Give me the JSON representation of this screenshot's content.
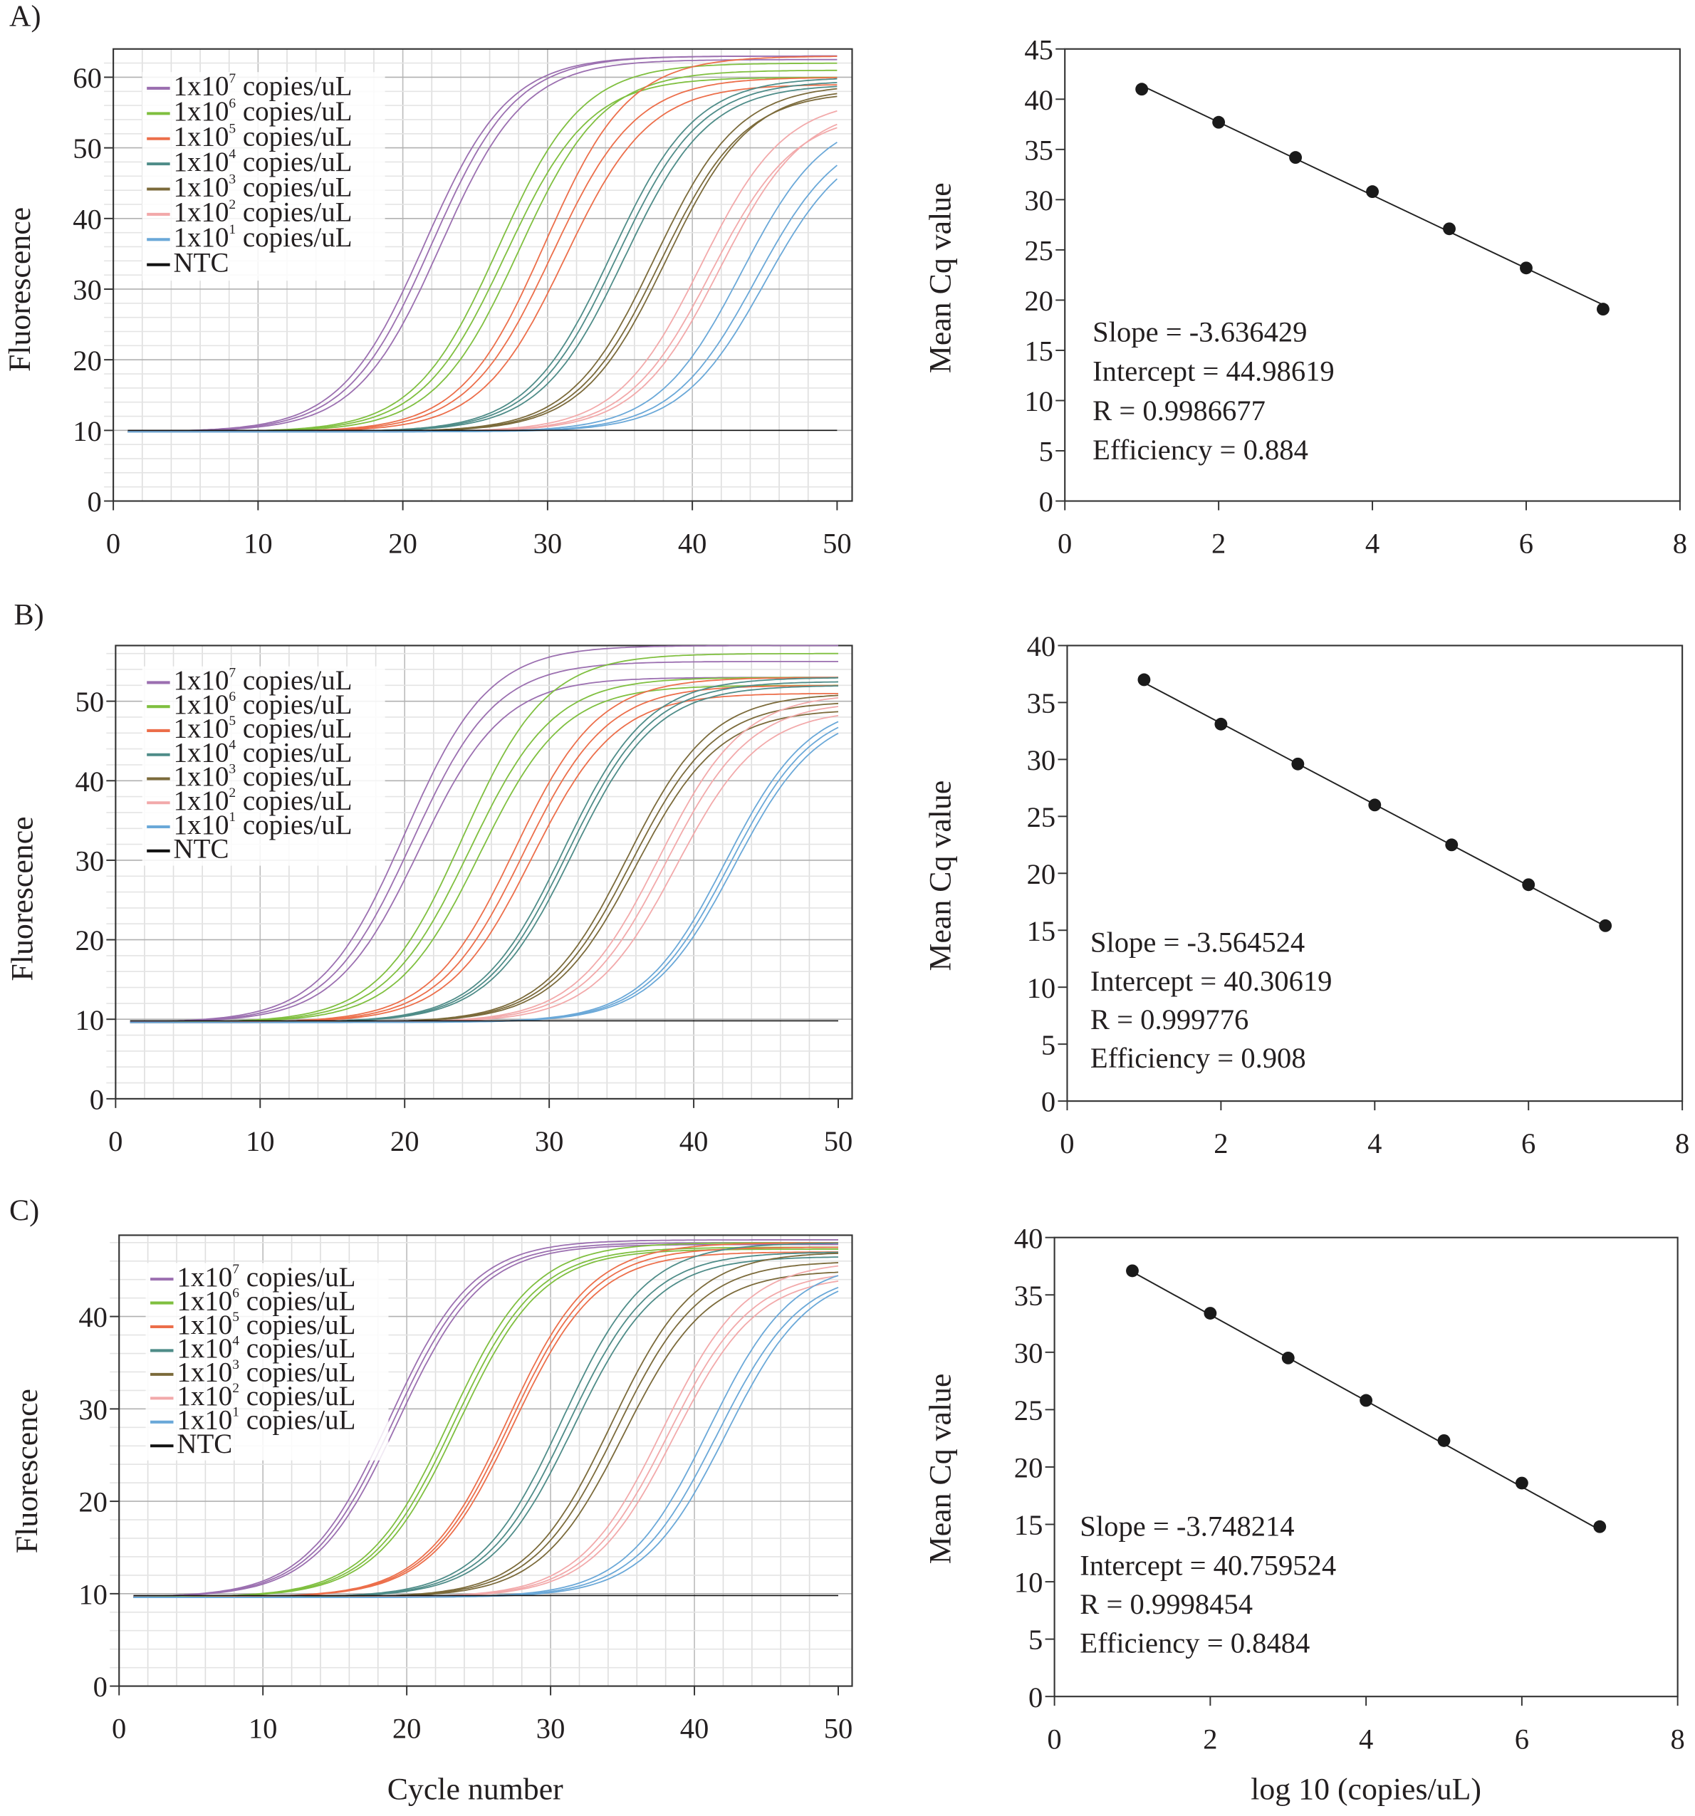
{
  "chart_data": [
    {
      "panel": "A)",
      "type": "line",
      "xlabel": "",
      "ylabel": "Fluorescence",
      "xlim": [
        0,
        50
      ],
      "ylim": [
        0,
        64
      ],
      "xticks": [
        0,
        10,
        20,
        30,
        40,
        50
      ],
      "yticks": [
        0,
        10,
        20,
        30,
        40,
        50,
        60
      ],
      "grid": true,
      "legend_position": "top-left",
      "baseline": 9.8,
      "ntc_level": 10,
      "series": [
        {
          "base": "1x10",
          "exp": "7",
          "unit": "copies/uL",
          "color": "#9b6fb0",
          "plateau": [
            63,
            63,
            62.5
          ],
          "midpoint": [
            21.5,
            22.0,
            22.6
          ]
        },
        {
          "base": "1x10",
          "exp": "6",
          "unit": "copies/uL",
          "color": "#7fbf3f",
          "plateau": [
            62,
            60,
            61
          ],
          "midpoint": [
            26.6,
            27.1,
            28.0
          ]
        },
        {
          "base": "1x10",
          "exp": "5",
          "unit": "copies/uL",
          "color": "#ec6e4a",
          "plateau": [
            63,
            60,
            59
          ],
          "midpoint": [
            29.8,
            30.3,
            31.2
          ]
        },
        {
          "base": "1x10",
          "exp": "4",
          "unit": "copies/uL",
          "color": "#4e8c88",
          "plateau": [
            60,
            59.5,
            59
          ],
          "midpoint": [
            34.4,
            34.8,
            35.3
          ]
        },
        {
          "base": "1x10",
          "exp": "3",
          "unit": "copies/uL",
          "color": "#7b6a3a",
          "plateau": [
            59,
            58,
            58.5
          ],
          "midpoint": [
            37.4,
            37.8,
            38.2
          ]
        },
        {
          "base": "1x10",
          "exp": "2",
          "unit": "copies/uL",
          "color": "#f2a9aa",
          "plateau": [
            57,
            55,
            56
          ],
          "midpoint": [
            40.6,
            41.3,
            41.9
          ]
        },
        {
          "base": "1x10",
          "exp": "1",
          "unit": "copies/uL",
          "color": "#6aa8d8",
          "plateau": [
            55,
            53,
            52
          ],
          "midpoint": [
            43.4,
            44.4,
            45.0
          ]
        },
        {
          "base": "NTC",
          "exp": "",
          "unit": "",
          "color": "#111111",
          "plateau": null,
          "midpoint": null
        }
      ]
    },
    {
      "panel": "",
      "type": "scatter",
      "xlabel": "",
      "ylabel": "Mean Cq value",
      "xlim": [
        0,
        8
      ],
      "ylim": [
        0,
        45
      ],
      "xticks": [
        0,
        2,
        4,
        6,
        8
      ],
      "yticks": [
        0,
        5,
        10,
        15,
        20,
        25,
        30,
        35,
        40,
        45
      ],
      "x": [
        1,
        2,
        3,
        4,
        5,
        6,
        7
      ],
      "y": [
        41.0,
        37.7,
        34.2,
        30.8,
        27.1,
        23.2,
        19.1
      ],
      "fit": {
        "slope": -3.636429,
        "intercept": 44.98619
      },
      "annotations": [
        "Slope = -3.636429",
        "Intercept = 44.98619",
        "R = 0.9986677",
        "Efficiency = 0.884"
      ]
    },
    {
      "panel": "B)",
      "type": "line",
      "xlabel": "",
      "ylabel": "Fluorescence",
      "xlim": [
        0,
        50
      ],
      "ylim": [
        0,
        57
      ],
      "xticks": [
        0,
        10,
        20,
        30,
        40,
        50
      ],
      "yticks": [
        0,
        10,
        20,
        30,
        40,
        50
      ],
      "grid": true,
      "legend_position": "top-left",
      "baseline": 9.6,
      "ntc_level": 9.8,
      "series": [
        {
          "base": "1x10",
          "exp": "7",
          "unit": "copies/uL",
          "color": "#9b6fb0",
          "plateau": [
            57,
            55,
            53
          ],
          "midpoint": [
            20.0,
            20.5,
            21.0
          ]
        },
        {
          "base": "1x10",
          "exp": "6",
          "unit": "copies/uL",
          "color": "#7fbf3f",
          "plateau": [
            56,
            53,
            52
          ],
          "midpoint": [
            24.0,
            24.5,
            25.2
          ]
        },
        {
          "base": "1x10",
          "exp": "5",
          "unit": "copies/uL",
          "color": "#ec6e4a",
          "plateau": [
            53,
            52,
            51
          ],
          "midpoint": [
            27.6,
            28.2,
            28.8
          ]
        },
        {
          "base": "1x10",
          "exp": "4",
          "unit": "copies/uL",
          "color": "#4e8c88",
          "plateau": [
            53,
            52.5,
            52
          ],
          "midpoint": [
            31.0,
            31.3,
            31.6
          ]
        },
        {
          "base": "1x10",
          "exp": "3",
          "unit": "copies/uL",
          "color": "#7b6a3a",
          "plateau": [
            51,
            50,
            49
          ],
          "midpoint": [
            35.4,
            35.7,
            36.0
          ]
        },
        {
          "base": "1x10",
          "exp": "2",
          "unit": "copies/uL",
          "color": "#f2a9aa",
          "plateau": [
            51,
            50,
            49
          ],
          "midpoint": [
            37.6,
            38.1,
            38.8
          ]
        },
        {
          "base": "1x10",
          "exp": "1",
          "unit": "copies/uL",
          "color": "#6aa8d8",
          "plateau": [
            50,
            49.5,
            49
          ],
          "midpoint": [
            42.2,
            42.5,
            42.8
          ]
        },
        {
          "base": "NTC",
          "exp": "",
          "unit": "",
          "color": "#111111",
          "plateau": null,
          "midpoint": null
        }
      ]
    },
    {
      "panel": "",
      "type": "scatter",
      "xlabel": "",
      "ylabel": "Mean Cq value",
      "xlim": [
        0,
        8
      ],
      "ylim": [
        0,
        40
      ],
      "xticks": [
        0,
        2,
        4,
        6,
        8
      ],
      "yticks": [
        0,
        5,
        10,
        15,
        20,
        25,
        30,
        35,
        40
      ],
      "x": [
        1,
        2,
        3,
        4,
        5,
        6,
        7
      ],
      "y": [
        37.0,
        33.1,
        29.6,
        26.0,
        22.5,
        19.0,
        15.4
      ],
      "fit": {
        "slope": -3.564524,
        "intercept": 40.30619
      },
      "annotations": [
        "Slope = -3.564524",
        "Intercept = 40.30619",
        "R = 0.999776",
        "Efficiency = 0.908"
      ]
    },
    {
      "panel": "C)",
      "type": "line",
      "xlabel": "Cycle number",
      "ylabel": "Fluorescence",
      "xlim": [
        0,
        50
      ],
      "ylim": [
        0,
        48.8
      ],
      "xticks": [
        0,
        10,
        20,
        30,
        40,
        50
      ],
      "yticks": [
        0,
        10,
        20,
        30,
        40
      ],
      "grid": true,
      "legend_position": "top-left",
      "baseline": 9.6,
      "ntc_level": 9.8,
      "series": [
        {
          "base": "1x10",
          "exp": "7",
          "unit": "copies/uL",
          "color": "#9b6fb0",
          "plateau": [
            48.3,
            48.0,
            47.8
          ],
          "midpoint": [
            18.8,
            19.1,
            19.4
          ]
        },
        {
          "base": "1x10",
          "exp": "6",
          "unit": "copies/uL",
          "color": "#7fbf3f",
          "plateau": [
            48,
            47.5,
            47.3
          ],
          "midpoint": [
            23.0,
            23.3,
            23.6
          ]
        },
        {
          "base": "1x10",
          "exp": "5",
          "unit": "copies/uL",
          "color": "#ec6e4a",
          "plateau": [
            48,
            47.5,
            47
          ],
          "midpoint": [
            27.0,
            27.2,
            27.4
          ]
        },
        {
          "base": "1x10",
          "exp": "4",
          "unit": "copies/uL",
          "color": "#4e8c88",
          "plateau": [
            48,
            47,
            46.5
          ],
          "midpoint": [
            30.8,
            31.2,
            31.6
          ]
        },
        {
          "base": "1x10",
          "exp": "3",
          "unit": "copies/uL",
          "color": "#7b6a3a",
          "plateau": [
            47,
            46,
            45
          ],
          "midpoint": [
            34.2,
            34.6,
            35.1
          ]
        },
        {
          "base": "1x10",
          "exp": "2",
          "unit": "copies/uL",
          "color": "#f2a9aa",
          "plateau": [
            46,
            45,
            44.5
          ],
          "midpoint": [
            37.8,
            38.2,
            38.6
          ]
        },
        {
          "base": "1x10",
          "exp": "1",
          "unit": "copies/uL",
          "color": "#6aa8d8",
          "plateau": [
            46,
            45,
            45
          ],
          "midpoint": [
            41.0,
            41.6,
            42.2
          ]
        },
        {
          "base": "NTC",
          "exp": "",
          "unit": "",
          "color": "#111111",
          "plateau": null,
          "midpoint": null
        }
      ]
    },
    {
      "panel": "",
      "type": "scatter",
      "xlabel": "log 10 (copies/uL)",
      "ylabel": "Mean Cq value",
      "xlim": [
        0,
        8
      ],
      "ylim": [
        0,
        40
      ],
      "xticks": [
        0,
        2,
        4,
        6,
        8
      ],
      "yticks": [
        0,
        5,
        10,
        15,
        20,
        25,
        30,
        35,
        40
      ],
      "x": [
        1,
        2,
        3,
        4,
        5,
        6,
        7
      ],
      "y": [
        37.1,
        33.4,
        29.5,
        25.8,
        22.3,
        18.6,
        14.8
      ],
      "fit": {
        "slope": -3.748214,
        "intercept": 40.759524
      },
      "annotations": [
        "Slope = -3.748214",
        "Intercept = 40.759524",
        "R = 0.9998454",
        "Efficiency = 0.8484"
      ]
    }
  ]
}
